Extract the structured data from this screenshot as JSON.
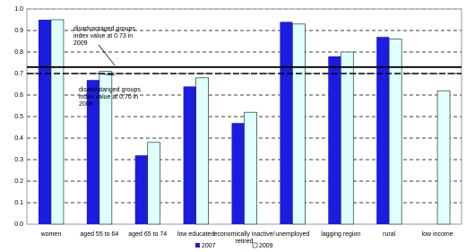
{
  "chart_data": {
    "type": "bar",
    "categories": [
      "women",
      "aged 55 to 64",
      "aged 65 to 74",
      "low educated",
      "economically inactive/ retired",
      "unemployed",
      "lagging region",
      "rural",
      "low income"
    ],
    "series": [
      {
        "name": "2007",
        "color": "#1c1ce0",
        "values": [
          0.95,
          0.67,
          0.32,
          0.64,
          0.47,
          0.94,
          0.78,
          0.87,
          null
        ]
      },
      {
        "name": "2009",
        "color": "#e0ffff",
        "values": [
          0.95,
          0.71,
          0.38,
          0.68,
          0.52,
          0.93,
          0.8,
          0.86,
          0.62
        ]
      }
    ],
    "ylim": [
      0,
      1
    ],
    "yticks": [
      {
        "value": 0,
        "label": "0.0"
      },
      0.1,
      0.2,
      0.3,
      0.4,
      0.5,
      0.6,
      0.7,
      0.8,
      0.9,
      {
        "value": 1,
        "label": "1.0"
      }
    ],
    "grid": true,
    "reference_lines": [
      {
        "value": 0.73,
        "style": "solid",
        "annotation": [
          "disadvantaged groups",
          "index value at 0.73 in",
          "2009"
        ]
      },
      {
        "value": 0.7,
        "style": "dashed",
        "annotation": [
          "disadvatanged groups",
          "index value at 0.70 in",
          "2008"
        ]
      }
    ],
    "legend": "bottom"
  }
}
